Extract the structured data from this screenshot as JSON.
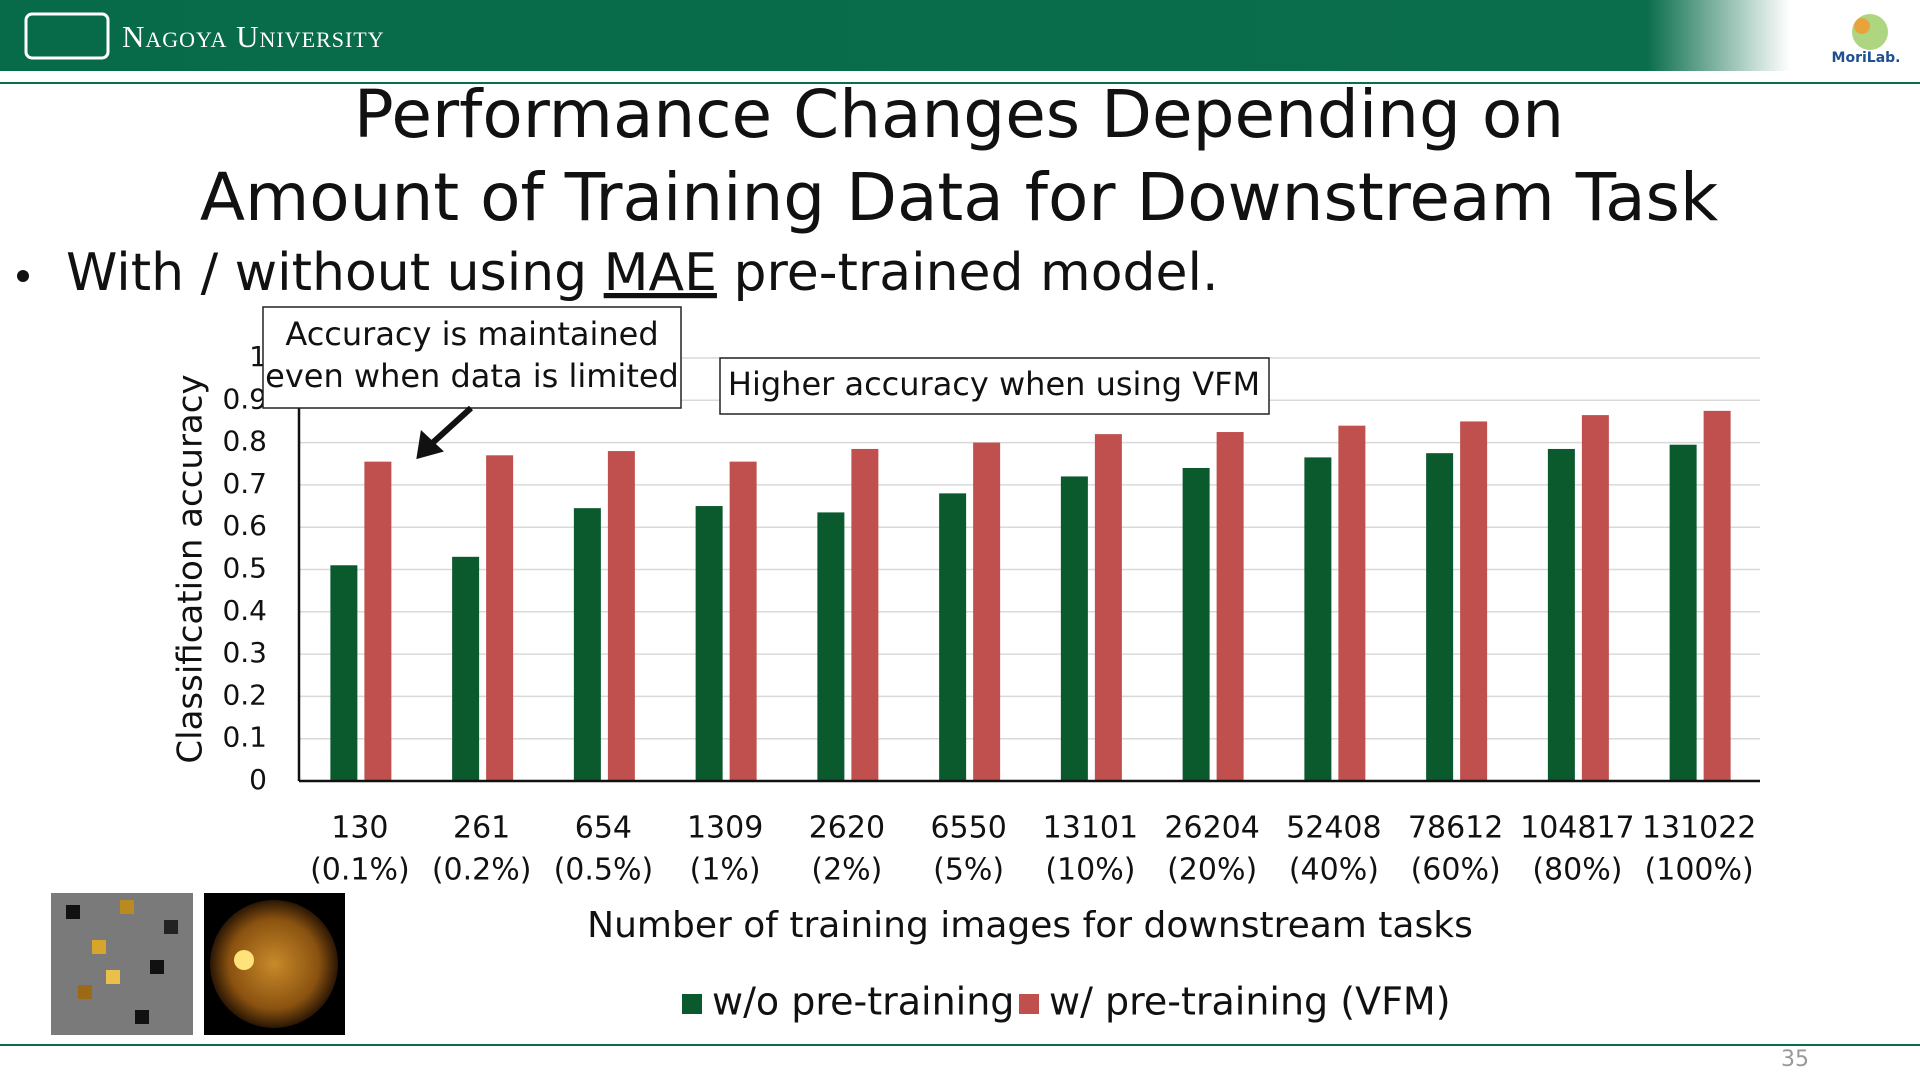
{
  "header": {
    "university": "Nagoya University",
    "lab": "MoriLab."
  },
  "title": [
    "Performance Changes Depending on",
    "Amount of Training Data for Downstream Task"
  ],
  "bullet": [
    "With / without using ",
    "MAE",
    " pre-trained model."
  ],
  "annotations": [
    [
      "Accuracy is maintained",
      "even when data is limited"
    ],
    "Higher accuracy when using VFM"
  ],
  "page_number": "35",
  "chart_data": {
    "type": "bar",
    "y_label": "Classification accuracy",
    "x_label": "Number of training images for downstream tasks",
    "categories": [
      [
        "130",
        "(0.1%)"
      ],
      [
        "261",
        "(0.2%)"
      ],
      [
        "654",
        "(0.5%)"
      ],
      [
        "1309",
        "(1%)"
      ],
      [
        "2620",
        "(2%)"
      ],
      [
        "6550",
        "(5%)"
      ],
      [
        "13101",
        "(10%)"
      ],
      [
        "26204",
        "(20%)"
      ],
      [
        "52408",
        "(40%)"
      ],
      [
        "78612",
        "(60%)"
      ],
      [
        "104817",
        "(80%)"
      ],
      [
        "131022",
        "(100%)"
      ]
    ],
    "series": [
      {
        "name": "w/o pre-training",
        "color": "#0b5a2e",
        "values": [
          0.51,
          0.53,
          0.645,
          0.65,
          0.635,
          0.68,
          0.72,
          0.74,
          0.765,
          0.775,
          0.785,
          0.795
        ]
      },
      {
        "name": "w/ pre-training (VFM)",
        "color": "#c0504d",
        "values": [
          0.755,
          0.77,
          0.78,
          0.755,
          0.785,
          0.8,
          0.82,
          0.825,
          0.84,
          0.85,
          0.865,
          0.875
        ]
      }
    ],
    "ylim": [
      0,
      1
    ],
    "yticks": [
      0,
      0.1,
      0.2,
      0.3,
      0.4,
      0.5,
      0.6,
      0.7,
      0.8,
      0.9,
      1
    ],
    "grid": true,
    "legend": "bottom"
  }
}
